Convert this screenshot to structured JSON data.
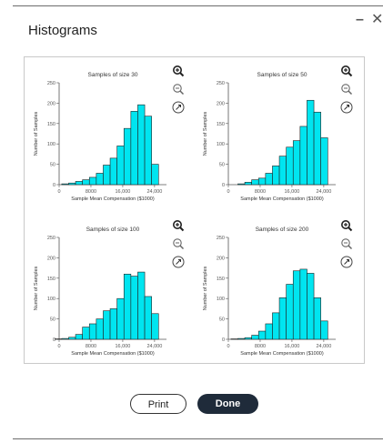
{
  "window": {
    "title": "Histograms",
    "minimize_icon": "minimize-icon",
    "close_icon": "close-icon"
  },
  "buttons": {
    "print": "Print",
    "done": "Done"
  },
  "colors": {
    "bar": "#00e5f0",
    "bar_stroke": "#222222",
    "done_bg": "#1f2b3a"
  },
  "chart_data": [
    {
      "type": "bar",
      "title": "Samples of size 30",
      "xlabel": "Sample Mean Compensation ($1000)",
      "ylabel": "Number of Samples",
      "ylim": [
        0,
        250
      ],
      "yticks": [
        "0",
        "50",
        "100",
        "150",
        "200",
        "250"
      ],
      "xticks": [
        "0",
        "8000",
        "16,000",
        "24,000"
      ],
      "values": [
        2,
        4,
        8,
        12,
        18,
        28,
        48,
        65,
        95,
        138,
        180,
        196,
        168,
        50
      ]
    },
    {
      "type": "bar",
      "title": "Samples of size 50",
      "xlabel": "Sample Mean Compensation ($1000)",
      "ylabel": "Number of Samples",
      "ylim": [
        0,
        250
      ],
      "yticks": [
        "0",
        "50",
        "100",
        "150",
        "200",
        "250"
      ],
      "xticks": [
        "0",
        "8000",
        "16,000",
        "24,000"
      ],
      "values": [
        2,
        6,
        12,
        16,
        28,
        46,
        70,
        92,
        108,
        143,
        207,
        178,
        115
      ]
    },
    {
      "type": "bar",
      "title": "Samples of size 100",
      "xlabel": "Sample Mean Compensation ($1000)",
      "ylabel": "Number of Samples",
      "ylim": [
        0,
        250
      ],
      "yticks": [
        "0",
        "50",
        "100",
        "150",
        "200",
        "250"
      ],
      "xticks": [
        "0",
        "8000",
        "16,000",
        "24,000"
      ],
      "values": [
        1,
        2,
        5,
        12,
        30,
        38,
        50,
        70,
        75,
        100,
        160,
        155,
        165,
        105,
        63
      ]
    },
    {
      "type": "bar",
      "title": "Samples of size 200",
      "xlabel": "Sample Mean Compensation ($1000)",
      "ylabel": "Number of Samples",
      "ylim": [
        0,
        250
      ],
      "yticks": [
        "0",
        "50",
        "100",
        "150",
        "200",
        "250"
      ],
      "xticks": [
        "0",
        "8000",
        "16,000",
        "24,000"
      ],
      "values": [
        1,
        2,
        4,
        10,
        20,
        38,
        65,
        102,
        135,
        168,
        172,
        162,
        102,
        45
      ]
    }
  ],
  "chart_tools": [
    {
      "icons": [
        "zoom-in-icon",
        "zoom-out-icon",
        "expand-icon"
      ]
    },
    {
      "icons": [
        "zoom-in-icon",
        "zoom-out-icon",
        "expand-icon"
      ]
    },
    {
      "icons": [
        "zoom-in-icon",
        "zoom-out-icon",
        "expand-icon"
      ]
    },
    {
      "icons": [
        "zoom-in-icon",
        "zoom-out-icon",
        "expand-icon"
      ]
    }
  ]
}
